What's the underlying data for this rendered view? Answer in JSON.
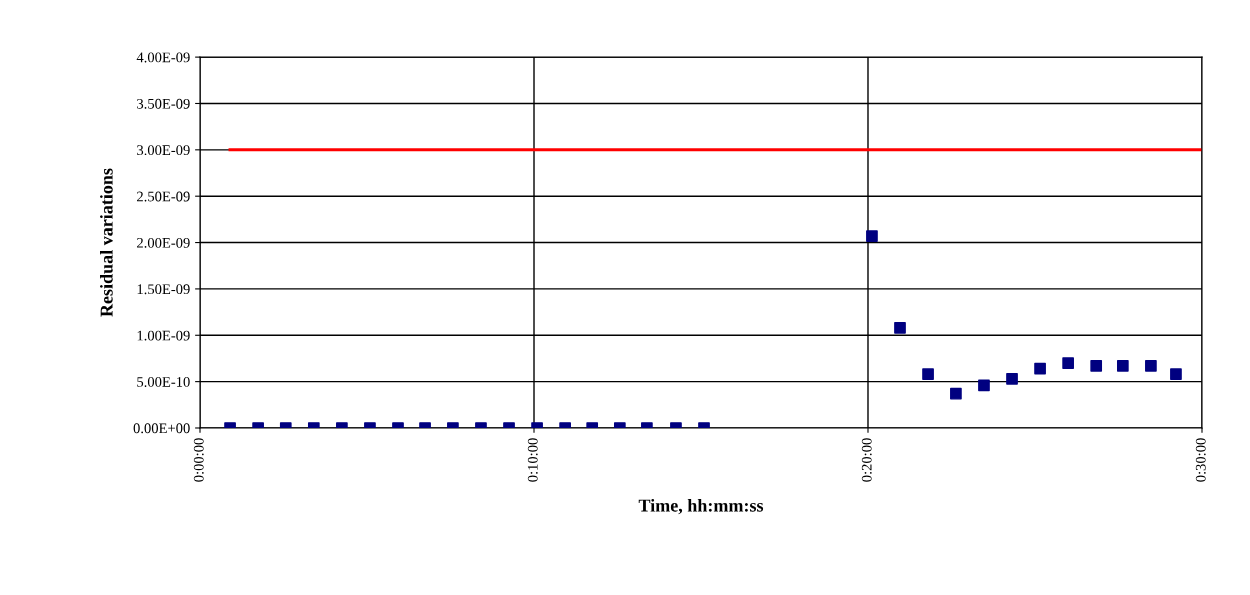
{
  "chart_data": {
    "type": "scatter",
    "xlabel": "Time, hh:mm:ss",
    "ylabel": "Residual variations",
    "xlim": [
      0,
      0.5
    ],
    "xticks": [
      {
        "value": 0,
        "label": "0:00:00"
      },
      {
        "value": 0.16667,
        "label": "0:10:00"
      },
      {
        "value": 0.33333,
        "label": "0:20:00"
      },
      {
        "value": 0.5,
        "label": "0:30:00"
      }
    ],
    "ylim": [
      0,
      4e-09
    ],
    "yticks": [
      {
        "value": 0,
        "label": "0.00E+00"
      },
      {
        "value": 5e-10,
        "label": "5.00E-10"
      },
      {
        "value": 1e-09,
        "label": "1.00E-09"
      },
      {
        "value": 1.5e-09,
        "label": "1.50E-09"
      },
      {
        "value": 2e-09,
        "label": "2.00E-09"
      },
      {
        "value": 2.5e-09,
        "label": "2.50E-09"
      },
      {
        "value": 3e-09,
        "label": "3.00E-09"
      },
      {
        "value": 3.5e-09,
        "label": "3.50E-09"
      },
      {
        "value": 4e-09,
        "label": "4.00E-09"
      }
    ],
    "grid": true,
    "series": [
      {
        "color": "#000080",
        "marker": "square",
        "x": [
          0.015,
          0.029,
          0.0428,
          0.0568,
          0.0708,
          0.0848,
          0.0988,
          0.1123,
          0.1262,
          0.1402,
          0.1542,
          0.1682,
          0.1822,
          0.1957,
          0.2095,
          0.223,
          0.2375,
          0.2515,
          0.3353,
          0.3493,
          0.3633,
          0.3772,
          0.3912,
          0.4052,
          0.4192,
          0.4332,
          0.4472,
          0.4605,
          0.4745,
          0.487
        ],
        "values": [
          0,
          0,
          0,
          0,
          0,
          0,
          0,
          0,
          0,
          0,
          0,
          0,
          0,
          0,
          0,
          0,
          0,
          0,
          2.07e-09,
          1.08e-09,
          5.8e-10,
          3.7e-10,
          4.6e-10,
          5.3e-10,
          6.4e-10,
          7e-10,
          6.7e-10,
          6.7e-10,
          6.7e-10,
          5.8e-10
        ]
      },
      {
        "type": "line",
        "color": "#ff0000",
        "marker": "none",
        "line_style": "solid",
        "x": [
          0.015,
          0.5
        ],
        "values": [
          3e-09,
          3e-09
        ]
      }
    ]
  }
}
